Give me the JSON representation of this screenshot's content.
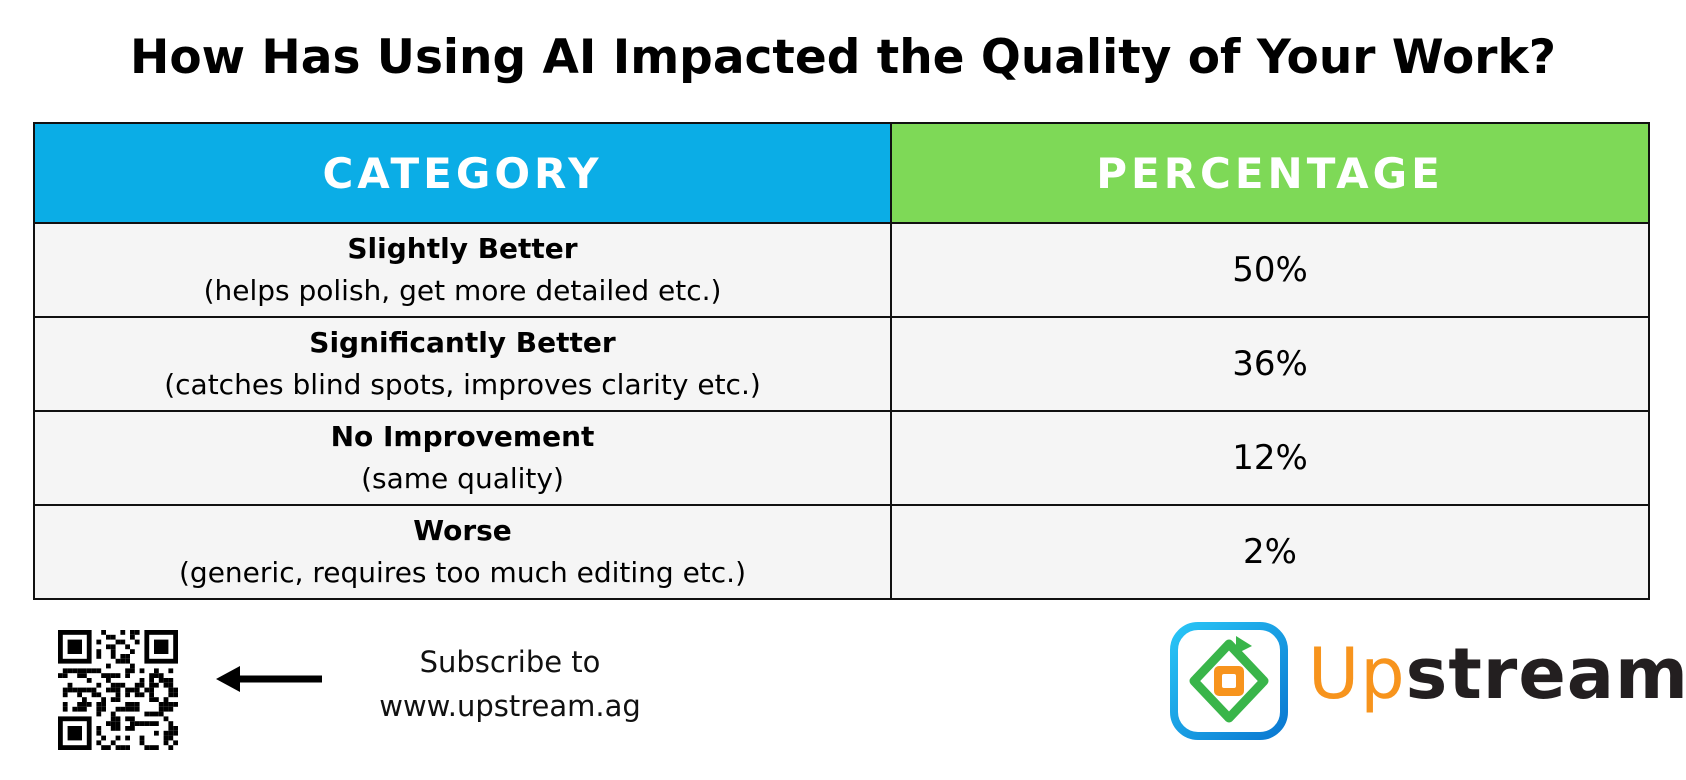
{
  "header": {
    "title": "How Has Using AI Impacted the Quality of Your Work?"
  },
  "table": {
    "columns": [
      "CATEGORY",
      "PERCENTAGE"
    ],
    "rows": [
      {
        "label": "Slightly Better",
        "description": "(helps polish, get more detailed etc.)",
        "percentage": "50%"
      },
      {
        "label": "Significantly Better",
        "description": "(catches blind spots, improves clarity etc.)",
        "percentage": "36%"
      },
      {
        "label": "No Improvement",
        "description": "(same quality)",
        "percentage": "12%"
      },
      {
        "label": "Worse",
        "description": "(generic, requires too much editing etc.)",
        "percentage": "2%"
      }
    ]
  },
  "footer": {
    "subscribe": [
      "Subscribe to",
      "www.upstream.ag"
    ],
    "brand": [
      "Up",
      "stream"
    ]
  }
}
